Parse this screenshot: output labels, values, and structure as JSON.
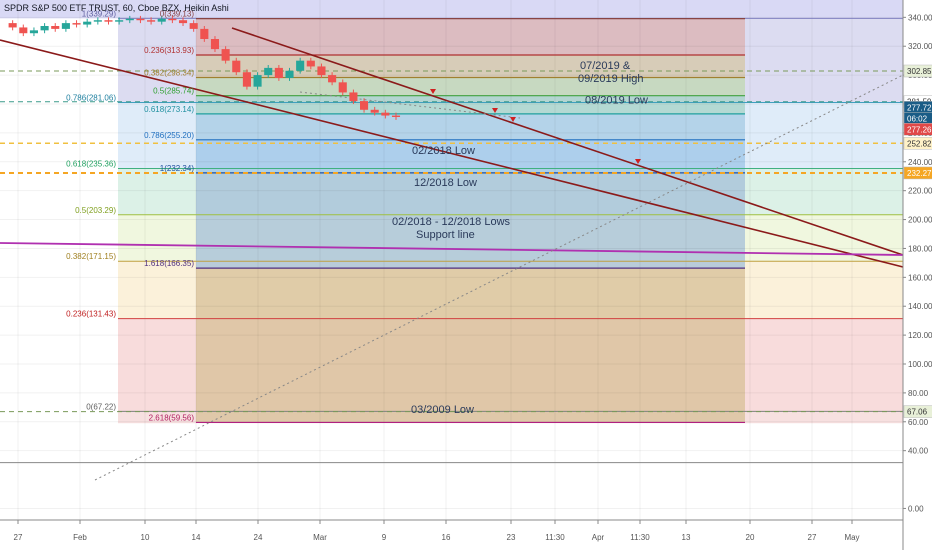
{
  "chart_data": {
    "type": "candlestick",
    "title": "SPDR S&P 500 ETF TRUST, 60, Cboe BZX, Heikin Ashi",
    "y_axis": {
      "ticks": [
        0.0,
        40.0,
        60.0,
        80.0,
        100.0,
        120.0,
        140.0,
        160.0,
        180.0,
        200.0,
        220.0,
        240.0,
        260.0,
        280.0,
        300.0,
        320.0,
        340.0
      ],
      "range": [
        -8,
        352
      ]
    },
    "x_axis": {
      "ticks": [
        "27",
        "Feb",
        "10",
        "14",
        "24",
        "Mar",
        "9",
        "16",
        "23",
        "11:30",
        "Apr",
        "11:30",
        "13",
        "20",
        "27",
        "May"
      ]
    },
    "fib_retracement_upper": {
      "levels": [
        {
          "ratio": "1",
          "value": 339.29,
          "label": "1(339.29)"
        },
        {
          "ratio": "0.786",
          "value": 281.06,
          "label": "0.786(281.06)"
        },
        {
          "ratio": "0.618",
          "value": 235.36,
          "label": "0.618(235.36)"
        },
        {
          "ratio": "0.5",
          "value": 203.29,
          "label": "0.5(203.29)"
        },
        {
          "ratio": "0.382",
          "value": 171.15,
          "label": "0.382(171.15)"
        },
        {
          "ratio": "0.236",
          "value": 131.43,
          "label": "0.236(131.43)"
        },
        {
          "ratio": "0",
          "value": 67.22,
          "label": "0(67.22)"
        }
      ]
    },
    "fib_retracement_lower": {
      "levels": [
        {
          "ratio": "0",
          "value": 339.13,
          "label": "0(339.13)"
        },
        {
          "ratio": "0.236",
          "value": 313.93,
          "label": "0.236(313.93)"
        },
        {
          "ratio": "0.382",
          "value": 298.34,
          "label": "0.382(298.34)"
        },
        {
          "ratio": "0.5",
          "value": 285.74,
          "label": "0.5(285.74)"
        },
        {
          "ratio": "0.618",
          "value": 273.14,
          "label": "0.618(273.14)"
        },
        {
          "ratio": "0.786",
          "value": 255.2,
          "label": "0.786(255.20)"
        },
        {
          "ratio": "1",
          "value": 232.34,
          "label": "1(232.34)"
        },
        {
          "ratio": "1.618",
          "value": 166.35,
          "label": "1.618(166.35)"
        },
        {
          "ratio": "2.618",
          "value": 59.56,
          "label": "2.618(59.56)"
        }
      ]
    },
    "horizontal_levels": [
      302.85,
      281.59,
      252.82,
      232.27,
      67.06
    ],
    "annotations": [
      {
        "text": "07/2019 &",
        "value": 307
      },
      {
        "text": "09/2019 High",
        "value": 298
      },
      {
        "text": "08/2019 Low",
        "value": 283
      },
      {
        "text": "02/2018 Low",
        "value": 248
      },
      {
        "text": "12/2018 Low",
        "value": 226
      },
      {
        "text": "02/2018 - 12/2018 Lows",
        "value": 199
      },
      {
        "text": "Support line",
        "value": 190
      },
      {
        "text": "03/2009 Low",
        "value": 69
      }
    ],
    "price_tags": [
      {
        "value": 302.85,
        "label": "302.85",
        "bg": "#e8f0d8",
        "fg": "#333333"
      },
      {
        "value": 281.59,
        "label": "281.59",
        "bg": "#ffffff",
        "fg": "#333333"
      },
      {
        "value": 277.72,
        "label": "277.72",
        "bg": "#1a5c86",
        "fg": "#ffffff"
      },
      {
        "value": 270.0,
        "label": "06:02",
        "bg": "#1a5c86",
        "fg": "#ffffff"
      },
      {
        "value": 262.5,
        "label": "277.26",
        "bg": "#e04848",
        "fg": "#ffffff"
      },
      {
        "value": 252.82,
        "label": "252.82",
        "bg": "#fff2c8",
        "fg": "#333333"
      },
      {
        "value": 232.27,
        "label": "232.27",
        "bg": "#f5a623",
        "fg": "#ffffff"
      },
      {
        "value": 67.06,
        "label": "67.06",
        "bg": "#e8f0d8",
        "fg": "#333333"
      }
    ],
    "price_series_approx": [
      336,
      333,
      329,
      331,
      334,
      332,
      336,
      335,
      337,
      338,
      337,
      338,
      339,
      338,
      337,
      339,
      338,
      336,
      332,
      325,
      318,
      310,
      302,
      292,
      300,
      305,
      298,
      303,
      310,
      306,
      300,
      295,
      288,
      282,
      276,
      274,
      272,
      271
    ],
    "colors": {
      "up": "#26a69a",
      "down": "#ef5350",
      "channel": "#8b1a1a",
      "support": "#b030b0",
      "orange_level": "#f5a623"
    }
  }
}
